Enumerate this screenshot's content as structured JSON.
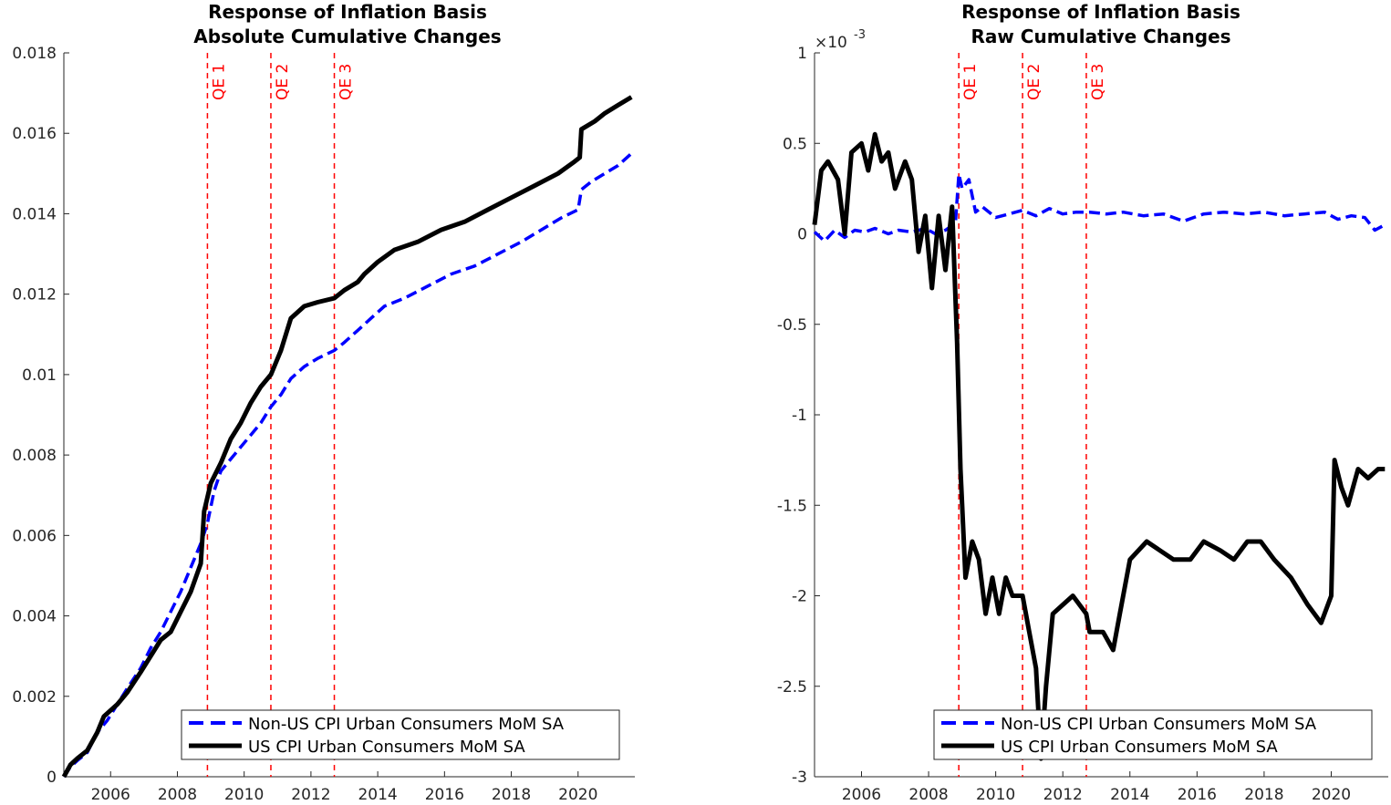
{
  "chart_data": [
    {
      "type": "line",
      "title": [
        "Response of Inflation Basis",
        "Absolute Cumulative Changes"
      ],
      "xlabel": "",
      "ylabel": "",
      "xlim": [
        2004.6,
        2021.7
      ],
      "ylim": [
        0,
        0.018
      ],
      "x_ticks": [
        2006,
        2008,
        2010,
        2012,
        2014,
        2016,
        2018,
        2020
      ],
      "y_ticks": [
        0,
        0.002,
        0.004,
        0.006,
        0.008,
        0.01,
        0.012,
        0.014,
        0.016,
        0.018
      ],
      "y_tick_labels": [
        "0",
        "0.002",
        "0.004",
        "0.006",
        "0.008",
        "0.01",
        "0.012",
        "0.014",
        "0.016",
        "0.018"
      ],
      "y_exponent_label": "",
      "grid": false,
      "legend_position": "bottom-right",
      "event_lines": [
        {
          "label": "QE 1",
          "x": 2008.9
        },
        {
          "label": "QE 2",
          "x": 2010.8
        },
        {
          "label": "QE 3",
          "x": 2012.7
        }
      ],
      "series": [
        {
          "name": "Non-US CPI Urban Consumers MoM SA",
          "style": "dashed",
          "color": "#0000ff",
          "x": [
            2004.6,
            2004.8,
            2005.0,
            2005.3,
            2005.6,
            2005.9,
            2006.2,
            2006.5,
            2006.9,
            2007.2,
            2007.5,
            2007.8,
            2008.1,
            2008.4,
            2008.7,
            2008.9,
            2009.1,
            2009.3,
            2009.6,
            2009.9,
            2010.2,
            2010.5,
            2010.8,
            2011.1,
            2011.4,
            2011.8,
            2012.2,
            2012.7,
            2013.0,
            2013.4,
            2013.8,
            2014.2,
            2014.8,
            2015.5,
            2016.2,
            2016.9,
            2017.6,
            2018.3,
            2018.9,
            2019.5,
            2020.0,
            2020.1,
            2020.4,
            2020.8,
            2021.2,
            2021.6
          ],
          "values": [
            0,
            0.00025,
            0.0004,
            0.0006,
            0.0011,
            0.0014,
            0.0018,
            0.0022,
            0.0027,
            0.0032,
            0.0036,
            0.0041,
            0.0046,
            0.0052,
            0.0058,
            0.0063,
            0.0071,
            0.0076,
            0.0079,
            0.0082,
            0.0085,
            0.0088,
            0.0092,
            0.0095,
            0.0099,
            0.0102,
            0.0104,
            0.0106,
            0.0108,
            0.0111,
            0.0114,
            0.0117,
            0.0119,
            0.0122,
            0.0125,
            0.0127,
            0.013,
            0.0133,
            0.0136,
            0.0139,
            0.0141,
            0.0146,
            0.0148,
            0.015,
            0.0152,
            0.0155
          ]
        },
        {
          "name": "US CPI Urban Consumers MoM SA",
          "style": "solid",
          "color": "#000000",
          "x": [
            2004.6,
            2004.8,
            2005.0,
            2005.3,
            2005.6,
            2005.8,
            2006.2,
            2006.5,
            2006.9,
            2007.2,
            2007.5,
            2007.8,
            2008.1,
            2008.4,
            2008.7,
            2008.8,
            2009.0,
            2009.3,
            2009.6,
            2009.9,
            2010.2,
            2010.5,
            2010.8,
            2011.1,
            2011.4,
            2011.8,
            2012.2,
            2012.7,
            2013.0,
            2013.4,
            2013.6,
            2014.0,
            2014.5,
            2015.2,
            2015.9,
            2016.6,
            2017.3,
            2018.0,
            2018.7,
            2019.4,
            2019.9,
            2020.05,
            2020.1,
            2020.5,
            2020.8,
            2021.2,
            2021.6
          ],
          "values": [
            0,
            0.0003,
            0.00045,
            0.00065,
            0.0011,
            0.0015,
            0.0018,
            0.0021,
            0.0026,
            0.003,
            0.0034,
            0.0036,
            0.0041,
            0.0046,
            0.0053,
            0.0066,
            0.0073,
            0.0078,
            0.0084,
            0.0088,
            0.0093,
            0.0097,
            0.01,
            0.0106,
            0.0114,
            0.0117,
            0.0118,
            0.0119,
            0.0121,
            0.0123,
            0.0125,
            0.0128,
            0.0131,
            0.0133,
            0.0136,
            0.0138,
            0.0141,
            0.0144,
            0.0147,
            0.015,
            0.0153,
            0.0154,
            0.0161,
            0.0163,
            0.0165,
            0.0167,
            0.0169
          ]
        }
      ]
    },
    {
      "type": "line",
      "title": [
        "Response of Inflation Basis",
        "Raw Cumulative Changes"
      ],
      "xlabel": "",
      "ylabel": "",
      "xlim": [
        2004.6,
        2021.7
      ],
      "ylim": [
        -0.003,
        0.001
      ],
      "x_ticks": [
        2006,
        2008,
        2010,
        2012,
        2014,
        2016,
        2018,
        2020
      ],
      "y_ticks": [
        -0.003,
        -0.0025,
        -0.002,
        -0.0015,
        -0.001,
        -0.0005,
        0,
        0.0005,
        0.001
      ],
      "y_tick_labels": [
        "-3",
        "-2.5",
        "-2",
        "-1.5",
        "-1",
        "-0.5",
        "0",
        "0.5",
        "1"
      ],
      "y_exponent_label": "×10",
      "y_exponent_power": "-3",
      "grid": false,
      "legend_position": "bottom-right",
      "event_lines": [
        {
          "label": "QE 1",
          "x": 2008.9
        },
        {
          "label": "QE 2",
          "x": 2010.8
        },
        {
          "label": "QE 3",
          "x": 2012.7
        }
      ],
      "series": [
        {
          "name": "Non-US CPI Urban Consumers MoM SA",
          "style": "dashed",
          "color": "#0000ff",
          "x": [
            2004.6,
            2004.9,
            2005.2,
            2005.5,
            2005.8,
            2006.1,
            2006.4,
            2006.8,
            2007.1,
            2007.5,
            2007.9,
            2008.2,
            2008.5,
            2008.8,
            2008.9,
            2009.0,
            2009.2,
            2009.4,
            2009.6,
            2010.0,
            2010.4,
            2010.8,
            2011.2,
            2011.6,
            2012.0,
            2012.4,
            2012.8,
            2013.3,
            2013.8,
            2014.4,
            2015.0,
            2015.6,
            2016.2,
            2016.8,
            2017.4,
            2018.0,
            2018.6,
            2019.2,
            2019.8,
            2020.2,
            2020.6,
            2021.0,
            2021.3,
            2021.6
          ],
          "values": [
            1e-05,
            -4e-05,
            2e-05,
            -2e-05,
            2e-05,
            1e-05,
            3e-05,
            0.0,
            2e-05,
            1e-05,
            3e-05,
            0.0,
            2e-05,
            6e-05,
            0.00033,
            0.00025,
            0.0003,
            0.00012,
            0.00015,
            9e-05,
            0.00011,
            0.00013,
            0.0001,
            0.00014,
            0.00011,
            0.00012,
            0.00012,
            0.00011,
            0.00012,
            0.0001,
            0.00011,
            7e-05,
            0.00011,
            0.00012,
            0.00011,
            0.00012,
            0.0001,
            0.00011,
            0.00012,
            8e-05,
            0.0001,
            9e-05,
            2e-05,
            5e-05
          ]
        },
        {
          "name": "US CPI Urban Consumers MoM SA",
          "style": "solid",
          "color": "#000000",
          "x": [
            2004.6,
            2004.8,
            2005.0,
            2005.3,
            2005.5,
            2005.7,
            2006.0,
            2006.2,
            2006.4,
            2006.6,
            2006.8,
            2007.0,
            2007.3,
            2007.5,
            2007.7,
            2007.9,
            2008.1,
            2008.3,
            2008.5,
            2008.7,
            2008.85,
            2008.95,
            2009.1,
            2009.3,
            2009.5,
            2009.7,
            2009.9,
            2010.1,
            2010.3,
            2010.5,
            2010.8,
            2011.0,
            2011.2,
            2011.35,
            2011.5,
            2011.7,
            2012.0,
            2012.3,
            2012.7,
            2012.8,
            2013.2,
            2013.5,
            2013.7,
            2014.0,
            2014.5,
            2014.9,
            2015.3,
            2015.8,
            2016.2,
            2016.7,
            2017.1,
            2017.5,
            2017.9,
            2018.3,
            2018.8,
            2019.3,
            2019.7,
            2020.0,
            2020.1,
            2020.3,
            2020.5,
            2020.8,
            2021.1,
            2021.4,
            2021.6
          ],
          "values": [
            5e-05,
            0.00035,
            0.0004,
            0.0003,
            0.0,
            0.00045,
            0.0005,
            0.00035,
            0.00055,
            0.0004,
            0.00045,
            0.00025,
            0.0004,
            0.0003,
            -0.0001,
            0.0001,
            -0.0003,
            0.0001,
            -0.0002,
            0.00015,
            -0.0006,
            -0.0013,
            -0.0019,
            -0.0017,
            -0.0018,
            -0.0021,
            -0.0019,
            -0.0021,
            -0.0019,
            -0.002,
            -0.002,
            -0.0022,
            -0.0024,
            -0.0029,
            -0.0025,
            -0.0021,
            -0.00205,
            -0.002,
            -0.0021,
            -0.0022,
            -0.0022,
            -0.0023,
            -0.0021,
            -0.0018,
            -0.0017,
            -0.00175,
            -0.0018,
            -0.0018,
            -0.0017,
            -0.00175,
            -0.0018,
            -0.0017,
            -0.0017,
            -0.0018,
            -0.0019,
            -0.00205,
            -0.00215,
            -0.002,
            -0.00125,
            -0.0014,
            -0.0015,
            -0.0013,
            -0.00135,
            -0.0013,
            -0.0013
          ]
        }
      ]
    }
  ]
}
